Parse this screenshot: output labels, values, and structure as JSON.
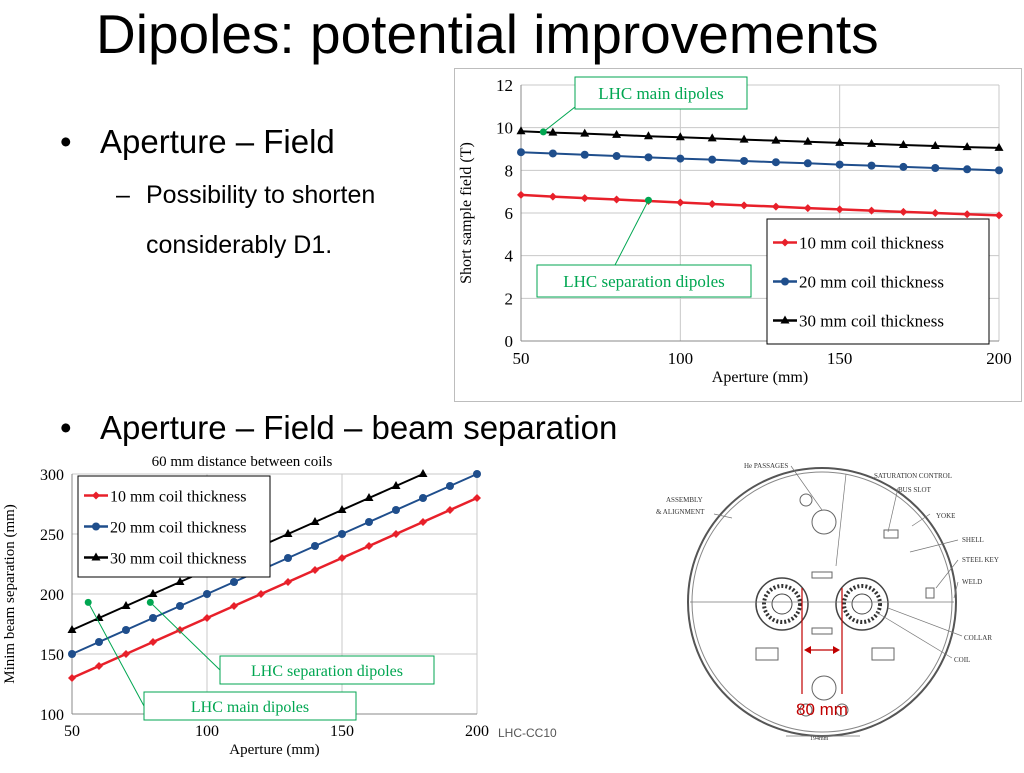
{
  "slide": {
    "title": "Dipoles: potential improvements",
    "bullet1": "Aperture – Field",
    "sub1_line1": "Possibility to shorten",
    "sub1_line2": "considerably D1.",
    "bullet2": "Aperture – Field – beam separation",
    "footer": "LHC-CC10",
    "dash": "–",
    "bullet_char": "•"
  },
  "chart_data": [
    {
      "type": "line",
      "xlabel": "Aperture (mm)",
      "ylabel": "Short sample field (T)",
      "xlim": [
        50,
        200
      ],
      "ylim": [
        0,
        12
      ],
      "xticks": [
        "50",
        "100",
        "150",
        "200"
      ],
      "yticks": [
        "0",
        "2",
        "4",
        "6",
        "8",
        "10",
        "12"
      ],
      "grid": true,
      "legend_position": "bottom-right",
      "x": [
        50,
        60,
        70,
        80,
        90,
        100,
        110,
        120,
        130,
        140,
        150,
        160,
        170,
        180,
        190,
        200
      ],
      "series": [
        {
          "name": "10 mm coil thickness",
          "color": "#e8202a",
          "marker": "diamond",
          "values": [
            6.85,
            6.77,
            6.7,
            6.63,
            6.56,
            6.49,
            6.42,
            6.36,
            6.3,
            6.23,
            6.17,
            6.11,
            6.05,
            6.0,
            5.94,
            5.89
          ]
        },
        {
          "name": "20 mm coil thickness",
          "color": "#1f4e8c",
          "marker": "circle",
          "values": [
            8.85,
            8.79,
            8.73,
            8.67,
            8.61,
            8.55,
            8.5,
            8.44,
            8.38,
            8.33,
            8.27,
            8.22,
            8.16,
            8.11,
            8.05,
            8.0
          ]
        },
        {
          "name": "30 mm coil thickness",
          "color": "#000000",
          "marker": "triangle",
          "values": [
            9.83,
            9.77,
            9.72,
            9.66,
            9.6,
            9.55,
            9.5,
            9.44,
            9.39,
            9.34,
            9.29,
            9.24,
            9.19,
            9.14,
            9.09,
            9.05
          ]
        }
      ],
      "annotations": [
        {
          "text": "LHC main dipoles",
          "x": 57,
          "y": 9.8,
          "color": "#00a651"
        },
        {
          "text": "LHC separation dipoles",
          "x": 90,
          "y": 6.6,
          "color": "#00a651"
        }
      ]
    },
    {
      "type": "line",
      "title": "60 mm distance between coils",
      "xlabel": "Aperture (mm)",
      "ylabel": "Minim beam separation (mm)",
      "xlim": [
        50,
        200
      ],
      "ylim": [
        100,
        300
      ],
      "xticks": [
        "50",
        "100",
        "150",
        "200"
      ],
      "yticks": [
        "100",
        "150",
        "200",
        "250",
        "300"
      ],
      "grid": true,
      "legend_position": "top-left",
      "x": [
        50,
        60,
        70,
        80,
        90,
        100,
        110,
        120,
        130,
        140,
        150,
        160,
        170,
        180,
        190,
        200
      ],
      "series": [
        {
          "name": "10 mm coil thickness",
          "color": "#e8202a",
          "marker": "diamond",
          "values": [
            130,
            140,
            150,
            160,
            170,
            180,
            190,
            200,
            210,
            220,
            230,
            240,
            250,
            260,
            270,
            280
          ]
        },
        {
          "name": "20 mm coil thickness",
          "color": "#1f4e8c",
          "marker": "circle",
          "values": [
            150,
            160,
            170,
            180,
            190,
            200,
            210,
            220,
            230,
            240,
            250,
            260,
            270,
            280,
            290,
            300
          ]
        },
        {
          "name": "30 mm coil thickness",
          "color": "#000000",
          "marker": "triangle",
          "values": [
            170,
            180,
            190,
            200,
            210,
            220,
            230,
            240,
            250,
            260,
            270,
            280,
            290,
            300,
            null,
            null
          ]
        }
      ],
      "annotations": [
        {
          "text": "LHC separation dipoles",
          "x": 79,
          "y": 193,
          "color": "#00a651"
        },
        {
          "text": "LHC main dipoles",
          "x": 56,
          "y": 193,
          "color": "#00a651"
        }
      ]
    }
  ],
  "schematic": {
    "labels": {
      "he_passages": "He PASSAGES",
      "saturation_control": "SATURATION CONTROL",
      "bus_slot": "BUS SLOT",
      "assembly": "ASSEMBLY",
      "alignment": "& ALIGNMENT",
      "yoke": "YOKE",
      "shell": "SHELL",
      "steel_key": "STEEL KEY",
      "weld": "WELD",
      "collar": "COLLAR",
      "coil": "COIL",
      "diameter": "194mm",
      "separation": "80 mm"
    }
  }
}
